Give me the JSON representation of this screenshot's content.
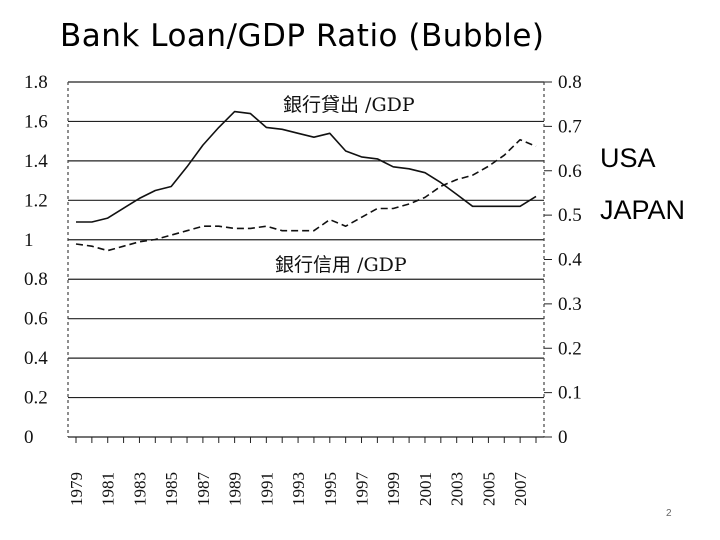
{
  "slide": {
    "title": "Bank Loan/GDP Ratio (Bubble)",
    "legend_usa": "USA",
    "legend_japan": "JAPAN",
    "page_number": "2"
  },
  "chart_data": {
    "type": "line",
    "title": "Bank Loan/GDP Ratio (Bubble)",
    "x": [
      1979,
      1980,
      1981,
      1982,
      1983,
      1984,
      1985,
      1986,
      1987,
      1988,
      1989,
      1990,
      1991,
      1992,
      1993,
      1994,
      1995,
      1996,
      1997,
      1998,
      1999,
      2000,
      2001,
      2002,
      2003,
      2004,
      2005,
      2006,
      2007,
      2008
    ],
    "x_tick_labels": [
      "1979",
      "1981",
      "1983",
      "1985",
      "1987",
      "1989",
      "1991",
      "1993",
      "1995",
      "1997",
      "1999",
      "2001",
      "2003",
      "2005",
      "2007"
    ],
    "left_axis": {
      "ylim": [
        0,
        1.8
      ],
      "ticks": [
        "0",
        "0.2",
        "0.4",
        "0.6",
        "0.8",
        "1",
        "1.2",
        "1.4",
        "1.6",
        "1.8"
      ]
    },
    "right_axis": {
      "ylim": [
        0,
        0.8
      ],
      "ticks": [
        "0",
        "0.1",
        "0.2",
        "0.3",
        "0.4",
        "0.5",
        "0.6",
        "0.7",
        "0.8"
      ]
    },
    "series": [
      {
        "name": "銀行貸出 /GDP",
        "axis": "left",
        "style": "solid",
        "values": [
          1.09,
          1.09,
          1.11,
          1.16,
          1.21,
          1.25,
          1.27,
          1.37,
          1.48,
          1.57,
          1.65,
          1.64,
          1.57,
          1.56,
          1.54,
          1.52,
          1.54,
          1.45,
          1.42,
          1.41,
          1.37,
          1.36,
          1.34,
          1.29,
          1.23,
          1.17,
          1.17,
          1.17,
          1.17,
          1.22
        ]
      },
      {
        "name": "銀行信用 /GDP",
        "axis": "right",
        "style": "dashed",
        "values": [
          0.435,
          0.43,
          0.42,
          0.43,
          0.44,
          0.445,
          0.455,
          0.465,
          0.475,
          0.475,
          0.47,
          0.47,
          0.475,
          0.465,
          0.465,
          0.465,
          0.49,
          0.475,
          0.495,
          0.515,
          0.515,
          0.525,
          0.54,
          0.565,
          0.58,
          0.59,
          0.61,
          0.635,
          0.67,
          0.655
        ]
      }
    ],
    "grid": "horizontal"
  }
}
